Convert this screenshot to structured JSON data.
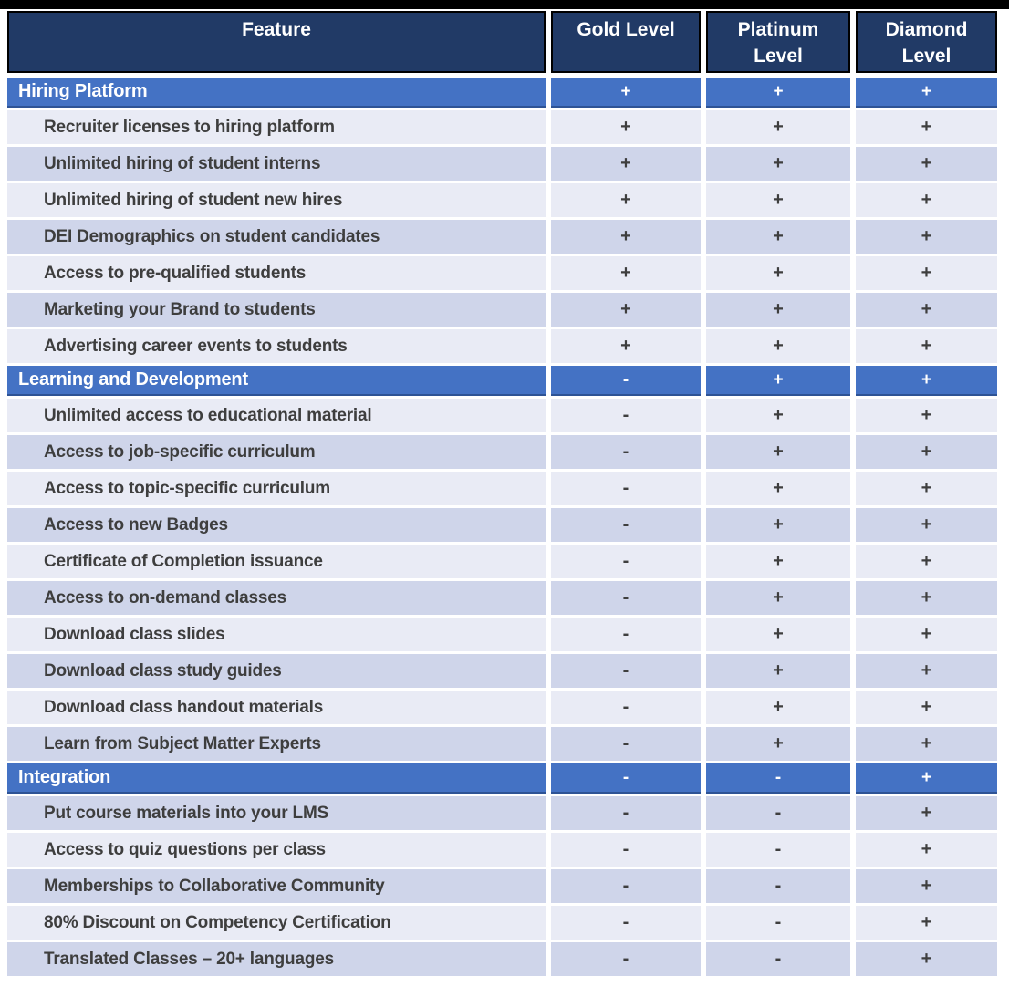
{
  "table": {
    "header": {
      "columns": [
        "Feature",
        "Gold Level",
        "Platinum Level",
        "Diamond Level"
      ]
    },
    "sections": [
      {
        "title": "Hiring Platform",
        "values": [
          "+",
          "+",
          "+"
        ],
        "features": [
          {
            "label": "Recruiter licenses to hiring platform",
            "values": [
              "+",
              "+",
              "+"
            ]
          },
          {
            "label": "Unlimited hiring of student interns",
            "values": [
              "+",
              "+",
              "+"
            ]
          },
          {
            "label": "Unlimited hiring of student new hires",
            "values": [
              "+",
              "+",
              "+"
            ]
          },
          {
            "label": "DEI Demographics on student candidates",
            "values": [
              "+",
              "+",
              "+"
            ]
          },
          {
            "label": "Access to pre-qualified students",
            "values": [
              "+",
              "+",
              "+"
            ]
          },
          {
            "label": "Marketing your Brand to students",
            "values": [
              "+",
              "+",
              "+"
            ]
          },
          {
            "label": "Advertising career events to students",
            "values": [
              "+",
              "+",
              "+"
            ]
          }
        ]
      },
      {
        "title": "Learning and Development",
        "values": [
          "-",
          "+",
          "+"
        ],
        "features": [
          {
            "label": "Unlimited access to educational material",
            "values": [
              "-",
              "+",
              "+"
            ]
          },
          {
            "label": "Access to job-specific curriculum",
            "values": [
              "-",
              "+",
              "+"
            ]
          },
          {
            "label": "Access to topic-specific curriculum",
            "values": [
              "-",
              "+",
              "+"
            ]
          },
          {
            "label": "Access to new Badges",
            "values": [
              "-",
              "+",
              "+"
            ]
          },
          {
            "label": "Certificate of Completion issuance",
            "values": [
              "-",
              "+",
              "+"
            ]
          },
          {
            "label": "Access to on-demand classes",
            "values": [
              "-",
              "+",
              "+"
            ]
          },
          {
            "label": "Download class slides",
            "values": [
              "-",
              "+",
              "+"
            ]
          },
          {
            "label": "Download class study guides",
            "values": [
              "-",
              "+",
              "+"
            ]
          },
          {
            "label": "Download class handout materials",
            "values": [
              "-",
              "+",
              "+"
            ]
          },
          {
            "label": "Learn from Subject Matter Experts",
            "values": [
              "-",
              "+",
              "+"
            ]
          }
        ]
      },
      {
        "title": "Integration",
        "values": [
          "-",
          "-",
          "+"
        ],
        "features": [
          {
            "label": "Put course materials into your LMS",
            "values": [
              "-",
              "-",
              "+"
            ]
          },
          {
            "label": "Access to quiz questions per class",
            "values": [
              "-",
              "-",
              "+"
            ]
          },
          {
            "label": "Memberships to Collaborative Community",
            "values": [
              "-",
              "-",
              "+"
            ]
          },
          {
            "label": "80% Discount on Competency Certification",
            "values": [
              "-",
              "-",
              "+"
            ]
          },
          {
            "label": "Translated Classes – 20+ languages",
            "values": [
              "-",
              "-",
              "+"
            ]
          }
        ]
      }
    ]
  },
  "colors": {
    "top_bar": "#000000",
    "header_bg": "#213A66",
    "header_border": "#000000",
    "section_bg": "#4472C4",
    "section_border": "#2E5395",
    "row_light": "#E9EBF5",
    "row_dark": "#CFD5EA",
    "body_text": "#3E3E3E",
    "header_text": "#FFFFFF"
  }
}
